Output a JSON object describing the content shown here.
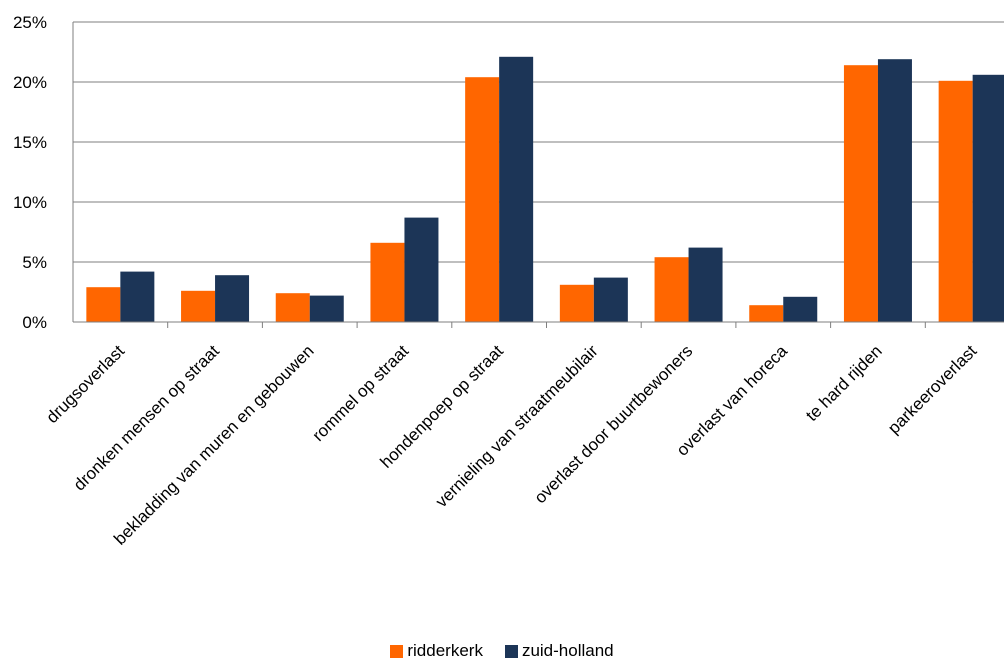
{
  "chart_data": {
    "type": "bar",
    "categories": [
      "drugsoverlast",
      "dronken mensen op straat",
      "bekladding van muren en gebouwen",
      "rommel op straat",
      "hondenpoep op straat",
      "vernieling van straatmeubilair",
      "overlast door buurtbewoners",
      "overlast van horeca",
      "te hard rijden",
      "parkeeroverlast"
    ],
    "series": [
      {
        "name": "ridderkerk",
        "color": "#ff6600",
        "values": [
          2.9,
          2.6,
          2.4,
          6.6,
          20.4,
          3.1,
          5.4,
          1.4,
          21.4,
          20.1
        ]
      },
      {
        "name": "zuid-holland",
        "color": "#1c3557",
        "values": [
          4.2,
          3.9,
          2.2,
          8.7,
          22.1,
          3.7,
          6.2,
          2.1,
          21.9,
          20.6
        ]
      }
    ],
    "yticks": [
      "0%",
      "5%",
      "10%",
      "15%",
      "20%",
      "25%"
    ],
    "ylim": [
      0,
      25
    ],
    "grid": true,
    "legend_position": "bottom"
  }
}
